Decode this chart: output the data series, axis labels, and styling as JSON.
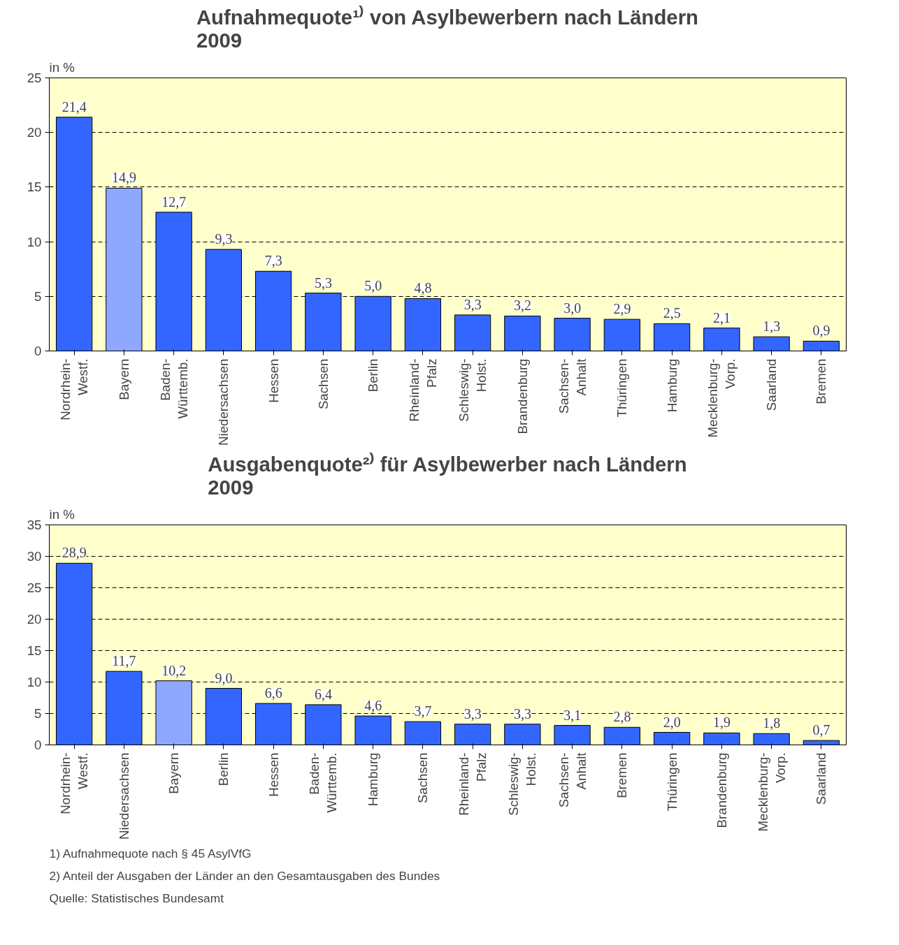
{
  "chart_data": [
    {
      "type": "bar",
      "title": "Aufnahmequote¹⁾ von Asylbewerbern nach Ländern\n2009",
      "ylabel": "in %",
      "categories": [
        "Nordrhein-\nWestf.",
        "Bayern",
        "Baden-\nWürttemb.",
        "Niedersachsen",
        "Hessen",
        "Sachsen",
        "Berlin",
        "Rheinland-\nPfalz",
        "Schleswig-\nHolst.",
        "Brandenburg",
        "Sachsen-\nAnhalt",
        "Thüringen",
        "Hamburg",
        "Mecklenburg-\nVorp.",
        "Saarland",
        "Bremen"
      ],
      "values": [
        21.4,
        14.9,
        12.7,
        9.3,
        7.3,
        5.3,
        5.0,
        4.8,
        3.3,
        3.2,
        3.0,
        2.9,
        2.5,
        2.1,
        1.3,
        0.9
      ],
      "value_labels": [
        "21,4",
        "14,9",
        "12,7",
        "9,3",
        "7,3",
        "5,3",
        "5,0",
        "4,8",
        "3,3",
        "3,2",
        "3,0",
        "2,9",
        "2,5",
        "2,1",
        "1,3",
        "0,9"
      ],
      "colors": [
        "#3366ff",
        "#8fa8ff",
        "#3366ff",
        "#3366ff",
        "#3366ff",
        "#3366ff",
        "#3366ff",
        "#3366ff",
        "#3366ff",
        "#3366ff",
        "#3366ff",
        "#3366ff",
        "#3366ff",
        "#3366ff",
        "#3366ff",
        "#3366ff"
      ],
      "ylim": [
        0,
        25
      ],
      "yticks": [
        0,
        5,
        10,
        15,
        20,
        25
      ],
      "grid": "y"
    },
    {
      "type": "bar",
      "title": "Ausgabenquote²⁾ für Asylbewerber nach Ländern\n2009",
      "ylabel": "in %",
      "categories": [
        "Nordrhein-\nWestf.",
        "Niedersachsen",
        "Bayern",
        "Berlin",
        "Hessen",
        "Baden-\nWürttemb.",
        "Hamburg",
        "Sachsen",
        "Rheinland-\nPfalz",
        "Schleswig-\nHolst.",
        "Sachsen-\nAnhalt",
        "Bremen",
        "Thüringen",
        "Brandenburg",
        "Mecklenburg-\nVorp.",
        "Saarland"
      ],
      "values": [
        28.9,
        11.7,
        10.2,
        9.0,
        6.6,
        6.4,
        4.6,
        3.7,
        3.3,
        3.3,
        3.1,
        2.8,
        2.0,
        1.9,
        1.8,
        0.7
      ],
      "value_labels": [
        "28,9",
        "11,7",
        "10,2",
        "9,0",
        "6,6",
        "6,4",
        "4,6",
        "3,7",
        "3,3",
        "3,3",
        "3,1",
        "2,8",
        "2,0",
        "1,9",
        "1,8",
        "0,7"
      ],
      "colors": [
        "#3366ff",
        "#3366ff",
        "#8fa8ff",
        "#3366ff",
        "#3366ff",
        "#3366ff",
        "#3366ff",
        "#3366ff",
        "#3366ff",
        "#3366ff",
        "#3366ff",
        "#3366ff",
        "#3366ff",
        "#3366ff",
        "#3366ff",
        "#3366ff"
      ],
      "ylim": [
        0,
        35
      ],
      "yticks": [
        0,
        5,
        10,
        15,
        20,
        25,
        30,
        35
      ],
      "grid": "y",
      "annotations": [
        "1) Aufnahmequote nach § 45 AsylVfG",
        "2) Anteil der Ausgaben der Länder an den Gesamtausgaben des Bundes",
        "Quelle: Statistisches Bundesamt"
      ]
    }
  ]
}
